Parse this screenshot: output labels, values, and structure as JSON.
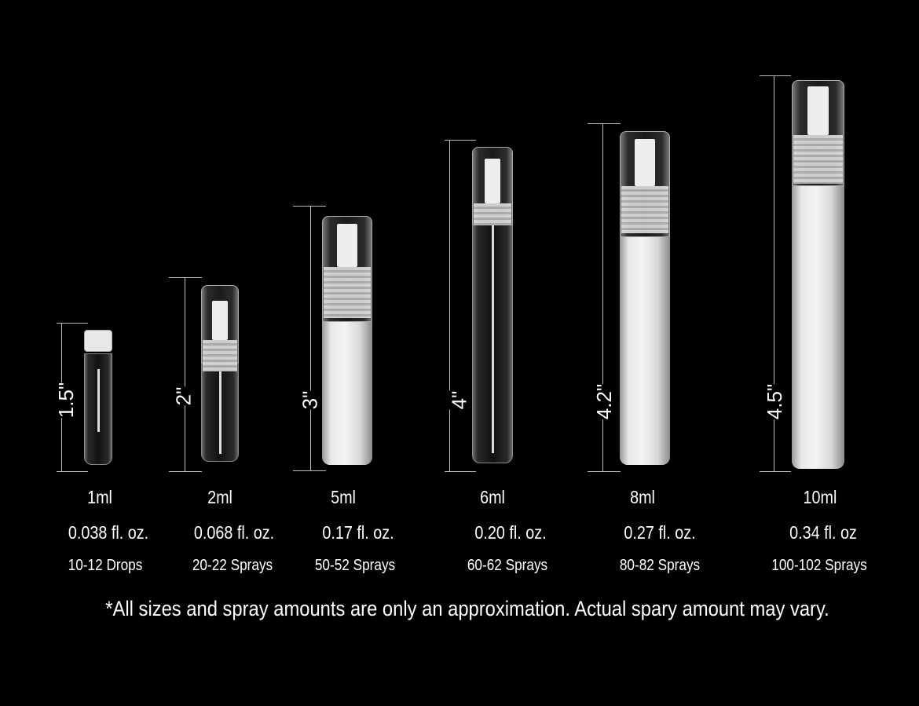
{
  "items": [
    {
      "height": "1.5\"",
      "volume": "1ml",
      "fl_oz": "0.038 fl. oz.",
      "count": "10-12 Drops"
    },
    {
      "height": "2\"",
      "volume": "2ml",
      "fl_oz": "0.068 fl. oz.",
      "count": "20-22 Sprays"
    },
    {
      "height": "3\"",
      "volume": "5ml",
      "fl_oz": "0.17 fl. oz.",
      "count": "50-52 Sprays"
    },
    {
      "height": "4\"",
      "volume": "6ml",
      "fl_oz": "0.20 fl. oz.",
      "count": "60-62 Sprays"
    },
    {
      "height": "4.2\"",
      "volume": "8ml",
      "fl_oz": "0.27 fl. oz.",
      "count": "80-82 Sprays"
    },
    {
      "height": "4.5\"",
      "volume": "10ml",
      "fl_oz": "0.34 fl. oz",
      "count": "100-102 Sprays"
    }
  ],
  "footer": "*All sizes and spray amounts are only an approximation. Actual spary amount may vary.",
  "colors": {
    "background": "#000000",
    "text": "#ffffff"
  }
}
